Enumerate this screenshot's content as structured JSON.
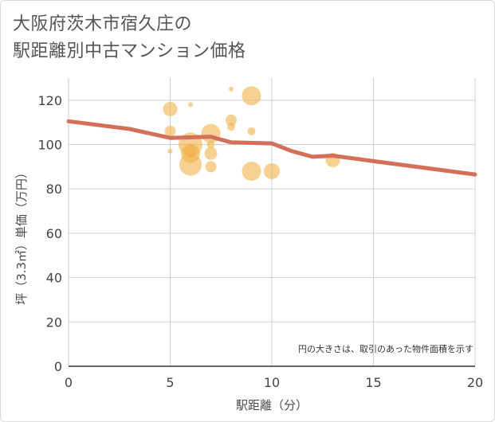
{
  "title": {
    "line1": "大阪府茨木市宿久庄の",
    "line2": "駅距離別中古マンション価格"
  },
  "chart_data": {
    "type": "scatter",
    "title": "大阪府茨木市宿久庄の駅距離別中古マンション価格",
    "xlabel": "駅距離（分）",
    "ylabel": "坪（3.3㎡）単価（万円）",
    "xlim": [
      0,
      20
    ],
    "ylim": [
      0,
      130
    ],
    "xticks": [
      0,
      5,
      10,
      15,
      20
    ],
    "yticks": [
      0,
      20,
      40,
      60,
      80,
      100,
      120
    ],
    "grid": true,
    "note": "円の大きさは、取引のあった物件面積を示す",
    "colors": {
      "bubble": "#f0b24a",
      "trend": "#d4705a",
      "grid": "#c9d2dd",
      "axis": "#333333"
    },
    "bubbles": [
      {
        "x": 5,
        "y": 116,
        "size": 9
      },
      {
        "x": 5,
        "y": 106,
        "size": 7
      },
      {
        "x": 5,
        "y": 97,
        "size": 3
      },
      {
        "x": 6,
        "y": 118,
        "size": 3
      },
      {
        "x": 6,
        "y": 100,
        "size": 15
      },
      {
        "x": 6,
        "y": 96,
        "size": 12
      },
      {
        "x": 6,
        "y": 97,
        "size": 8
      },
      {
        "x": 6,
        "y": 91,
        "size": 14
      },
      {
        "x": 7,
        "y": 105,
        "size": 12
      },
      {
        "x": 7,
        "y": 100,
        "size": 5
      },
      {
        "x": 7,
        "y": 96,
        "size": 8
      },
      {
        "x": 7,
        "y": 90,
        "size": 7
      },
      {
        "x": 8,
        "y": 125,
        "size": 3
      },
      {
        "x": 8,
        "y": 111,
        "size": 7
      },
      {
        "x": 8,
        "y": 108,
        "size": 5
      },
      {
        "x": 9,
        "y": 122,
        "size": 12
      },
      {
        "x": 9,
        "y": 106,
        "size": 5
      },
      {
        "x": 9,
        "y": 88,
        "size": 12
      },
      {
        "x": 10,
        "y": 88,
        "size": 10
      },
      {
        "x": 13,
        "y": 93,
        "size": 9
      }
    ],
    "trend": {
      "x": [
        0,
        3,
        5,
        7,
        8,
        10,
        11,
        12,
        13,
        15,
        20
      ],
      "y": [
        110.5,
        107,
        103,
        103.5,
        101,
        100.5,
        97,
        94.5,
        95,
        92.5,
        86.5
      ]
    }
  }
}
